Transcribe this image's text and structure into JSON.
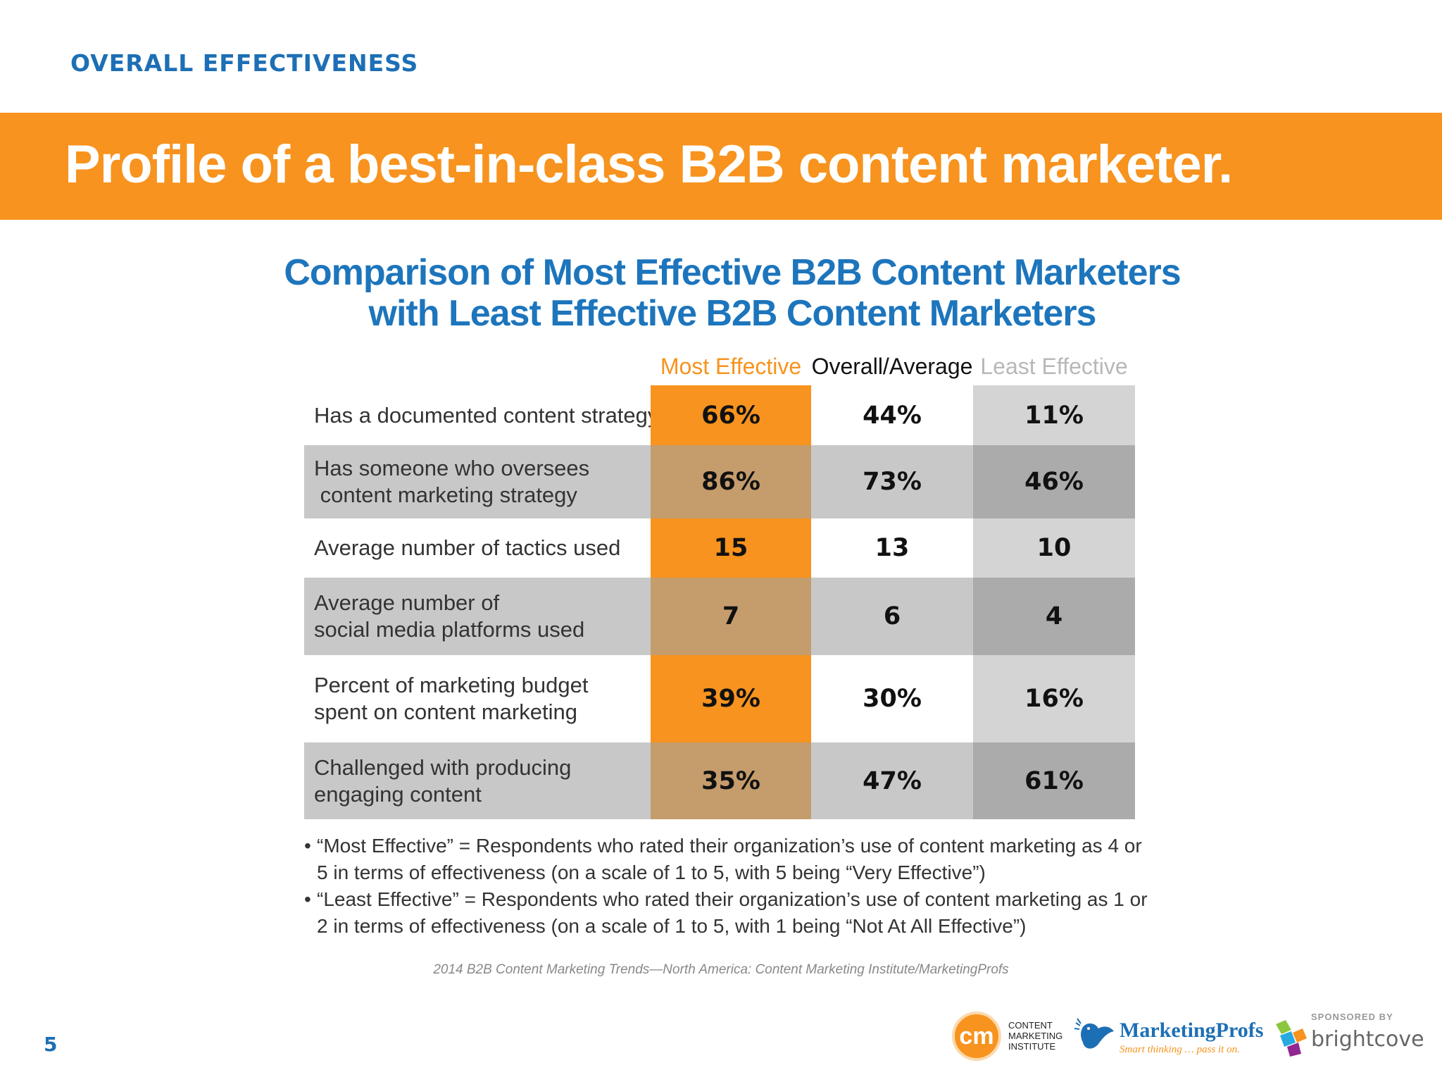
{
  "header": {
    "section_label": "OVERALL EFFECTIVENESS",
    "banner_title": "Profile of a best-in-class B2B content marketer."
  },
  "chart": {
    "title_line1": "Comparison of Most Effective B2B Content Marketers",
    "title_line2": "with Least Effective B2B Content Marketers"
  },
  "chart_data": {
    "type": "table",
    "title": "Comparison of Most Effective B2B Content Marketers with Least Effective B2B Content Marketers",
    "columns": [
      "Most Effective",
      "Overall/Average",
      "Least Effective"
    ],
    "rows": [
      {
        "label_line1": "Has a documented content strategy",
        "label_line2": "",
        "values": [
          "66%",
          "44%",
          "11%"
        ]
      },
      {
        "label_line1": "Has someone who oversees",
        "label_line2": " content marketing strategy",
        "values": [
          "86%",
          "73%",
          "46%"
        ]
      },
      {
        "label_line1": "Average number of tactics used",
        "label_line2": "",
        "values": [
          "15",
          "13",
          "10"
        ]
      },
      {
        "label_line1": "Average number of",
        "label_line2": "social media platforms used",
        "values": [
          "7",
          "6",
          "4"
        ]
      },
      {
        "label_line1": "Percent of marketing budget",
        "label_line2": "spent on content marketing",
        "values": [
          "39%",
          "30%",
          "16%"
        ]
      },
      {
        "label_line1": "Challenged with producing",
        "label_line2": "engaging content",
        "values": [
          "35%",
          "47%",
          "61%"
        ]
      }
    ]
  },
  "colors": {
    "accent_orange": "#f7931e",
    "brand_blue": "#1d6fb5",
    "least_gray": "#b8b8b8"
  },
  "notes": [
    {
      "bullet": "•",
      "text": " “Most Effective” = Respondents who rated their organization’s use of content marketing as 4 or 5 in terms of effectiveness (on a scale of 1 to 5, with 5 being “Very Effective”)"
    },
    {
      "bullet": "•",
      "text": "“Least Effective” = Respondents who rated their organization’s use of content marketing as 1 or 2 in terms of effectiveness (on a scale of 1 to 5, with 1 being “Not At All Effective”)"
    }
  ],
  "footer": {
    "source": "2014 B2B Content Marketing Trends—North America: Content Marketing Institute/MarketingProfs",
    "page_number": "5",
    "cmi_initials": "cm",
    "cmi_line1": "CONTENT",
    "cmi_line2": "MARKETING",
    "cmi_line3": "INSTITUTE",
    "mp_name": "MarketingProfs",
    "mp_tagline": "Smart thinking … pass it on.",
    "sponsored_by": "SPONSORED BY",
    "brightcove": "brightcove"
  }
}
